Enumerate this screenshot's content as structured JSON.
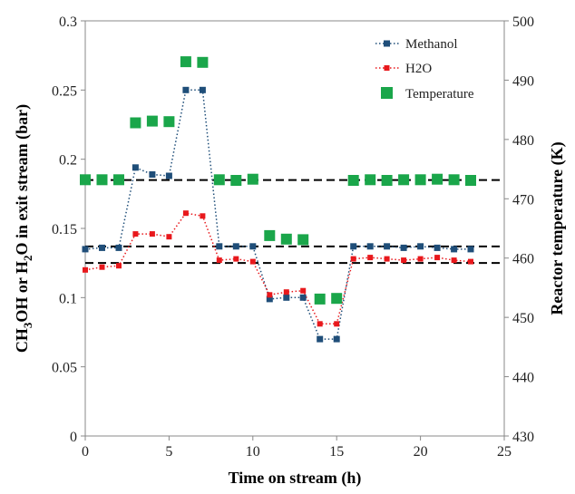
{
  "chart_data": {
    "type": "line",
    "xlabel": "Time on stream (h)",
    "ylabel_left": "CH3OH or H2O in exit stream (bar)",
    "ylabel_left_parts": {
      "p1": "CH",
      "s1": "3",
      "p2": "OH or H",
      "s2": "2",
      "p3": "O in exit stream (bar)"
    },
    "ylabel_right": "Reactor temperature (K)",
    "xlim": [
      0,
      25
    ],
    "xticks": [
      0,
      5,
      10,
      15,
      20,
      25
    ],
    "ylim_left": [
      0,
      0.3
    ],
    "yticks_left": [
      "0",
      "0.05",
      "0.1",
      "0.15",
      "0.2",
      "0.25",
      "0.3"
    ],
    "ylim_right": [
      430,
      500
    ],
    "yticks_right": [
      430,
      440,
      450,
      460,
      470,
      480,
      490,
      500
    ],
    "grid": false,
    "legend_position": "top-right",
    "series": [
      {
        "name": "Methanol",
        "axis": "left",
        "color": "#1f4e79",
        "style": "dotted-line-square-markers",
        "x": [
          0,
          1,
          2,
          3,
          4,
          5,
          6,
          7,
          8,
          9,
          10,
          11,
          12,
          13,
          14,
          15,
          16,
          17,
          18,
          19,
          20,
          21,
          22,
          23
        ],
        "y": [
          0.135,
          0.136,
          0.136,
          0.194,
          0.189,
          0.188,
          0.25,
          0.25,
          0.137,
          0.137,
          0.137,
          0.099,
          0.1,
          0.1,
          0.07,
          0.07,
          0.137,
          0.137,
          0.137,
          0.136,
          0.137,
          0.136,
          0.135,
          0.135
        ]
      },
      {
        "name": "H2O",
        "axis": "left",
        "color": "#e8181c",
        "style": "dotted-line-square-markers",
        "x": [
          0,
          1,
          2,
          3,
          4,
          5,
          6,
          7,
          8,
          9,
          10,
          11,
          12,
          13,
          14,
          15,
          16,
          17,
          18,
          19,
          20,
          21,
          22,
          23
        ],
        "y": [
          0.12,
          0.122,
          0.123,
          0.146,
          0.146,
          0.144,
          0.161,
          0.159,
          0.127,
          0.128,
          0.126,
          0.102,
          0.104,
          0.105,
          0.081,
          0.081,
          0.128,
          0.129,
          0.128,
          0.127,
          0.128,
          0.129,
          0.127,
          0.126
        ]
      },
      {
        "name": "Temperature",
        "axis": "right",
        "color": "#1aa64a",
        "style": "large-square-markers",
        "x": [
          0,
          1,
          2,
          3,
          4,
          5,
          6,
          7,
          8,
          9,
          10,
          11,
          12,
          13,
          14,
          15,
          16,
          17,
          18,
          19,
          20,
          21,
          22,
          23
        ],
        "y": [
          473.2,
          473.2,
          473.2,
          482.8,
          483.1,
          483.0,
          493.1,
          493.0,
          473.2,
          473.1,
          473.3,
          463.8,
          463.2,
          463.1,
          453.1,
          453.2,
          473.1,
          473.2,
          473.1,
          473.2,
          473.2,
          473.3,
          473.2,
          473.1
        ]
      }
    ],
    "reference_lines": [
      {
        "axis": "left",
        "y": 0.185
      },
      {
        "axis": "left",
        "y": 0.137
      },
      {
        "axis": "left",
        "y": 0.125
      }
    ],
    "reference_line_color": "#000000"
  }
}
